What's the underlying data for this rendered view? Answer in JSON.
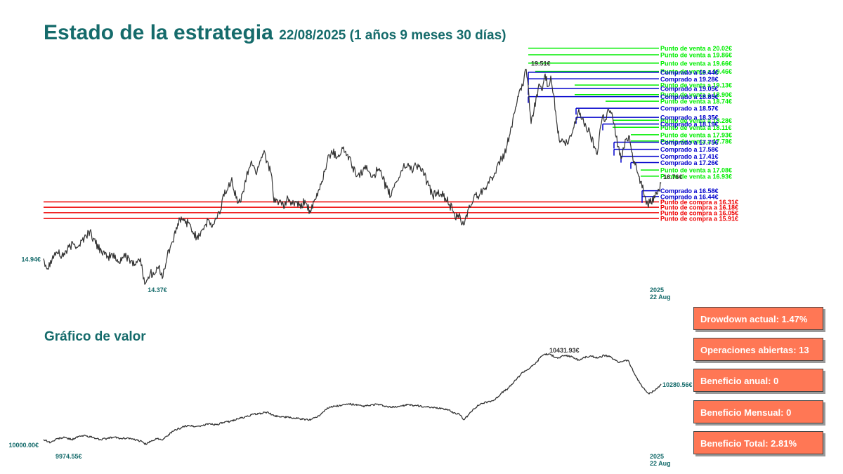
{
  "title": "Estado de la estrategia",
  "subtitle": "22/08/2025 (1 años 9 meses 30 días)",
  "value_title": "Gráfico de valor",
  "colors": {
    "title": "#156b6b",
    "price": "#333333",
    "sell": "#00ee00",
    "buy": "#0000cc",
    "buy_order": "#ee0000",
    "stat_bg": "#ff7755"
  },
  "chart_data": [
    {
      "type": "line",
      "name": "price",
      "ylim": [
        14.2,
        20.2
      ],
      "labels": {
        "start": "14.94€",
        "min": "14.37€",
        "max": "19.51€",
        "end": "16.76€",
        "date_year": "2025",
        "date_day": "22 Aug"
      },
      "anchors": [
        [
          0,
          14.94
        ],
        [
          6,
          14.7
        ],
        [
          10,
          14.9
        ],
        [
          18,
          15.1
        ],
        [
          26,
          15.0
        ],
        [
          34,
          15.15
        ],
        [
          42,
          15.3
        ],
        [
          50,
          15.25
        ],
        [
          58,
          15.45
        ],
        [
          66,
          15.6
        ],
        [
          74,
          15.3
        ],
        [
          82,
          15.15
        ],
        [
          90,
          14.95
        ],
        [
          98,
          15.05
        ],
        [
          106,
          14.85
        ],
        [
          114,
          15.0
        ],
        [
          122,
          14.95
        ],
        [
          130,
          14.8
        ],
        [
          138,
          14.95
        ],
        [
          142,
          14.45
        ],
        [
          146,
          14.37
        ],
        [
          152,
          14.6
        ],
        [
          158,
          14.55
        ],
        [
          164,
          14.75
        ],
        [
          170,
          14.5
        ],
        [
          176,
          15.0
        ],
        [
          182,
          15.3
        ],
        [
          188,
          15.55
        ],
        [
          194,
          15.9
        ],
        [
          200,
          15.85
        ],
        [
          206,
          15.8
        ],
        [
          212,
          15.6
        ],
        [
          218,
          15.45
        ],
        [
          224,
          15.6
        ],
        [
          230,
          15.75
        ],
        [
          236,
          15.85
        ],
        [
          240,
          15.7
        ],
        [
          246,
          15.9
        ],
        [
          252,
          16.1
        ],
        [
          256,
          16.5
        ],
        [
          262,
          16.6
        ],
        [
          268,
          16.9
        ],
        [
          274,
          16.4
        ],
        [
          280,
          16.3
        ],
        [
          286,
          16.7
        ],
        [
          292,
          17.1
        ],
        [
          296,
          17.3
        ],
        [
          302,
          17.0
        ],
        [
          308,
          17.3
        ],
        [
          314,
          17.55
        ],
        [
          318,
          17.3
        ],
        [
          324,
          17.0
        ],
        [
          328,
          16.3
        ],
        [
          336,
          16.35
        ],
        [
          342,
          16.15
        ],
        [
          348,
          16.4
        ],
        [
          354,
          16.25
        ],
        [
          360,
          16.3
        ],
        [
          366,
          16.15
        ],
        [
          372,
          16.35
        ],
        [
          380,
          16.05
        ],
        [
          388,
          16.4
        ],
        [
          396,
          16.8
        ],
        [
          404,
          17.3
        ],
        [
          410,
          17.55
        ],
        [
          418,
          17.4
        ],
        [
          426,
          17.6
        ],
        [
          432,
          17.45
        ],
        [
          438,
          17.25
        ],
        [
          444,
          17.0
        ],
        [
          450,
          16.9
        ],
        [
          456,
          17.15
        ],
        [
          462,
          17.05
        ],
        [
          470,
          16.95
        ],
        [
          476,
          17.1
        ],
        [
          482,
          16.9
        ],
        [
          488,
          16.65
        ],
        [
          494,
          16.45
        ],
        [
          500,
          16.75
        ],
        [
          506,
          16.9
        ],
        [
          512,
          17.15
        ],
        [
          518,
          17.2
        ],
        [
          524,
          17.1
        ],
        [
          530,
          17.2
        ],
        [
          536,
          17.15
        ],
        [
          542,
          16.95
        ],
        [
          548,
          16.7
        ],
        [
          554,
          16.45
        ],
        [
          560,
          16.55
        ],
        [
          566,
          16.5
        ],
        [
          572,
          16.4
        ],
        [
          578,
          16.25
        ],
        [
          582,
          16.1
        ],
        [
          586,
          15.9
        ],
        [
          590,
          16.0
        ],
        [
          594,
          15.85
        ],
        [
          598,
          15.75
        ],
        [
          602,
          16.0
        ],
        [
          608,
          16.2
        ],
        [
          614,
          16.5
        ],
        [
          620,
          16.45
        ],
        [
          626,
          16.65
        ],
        [
          632,
          16.75
        ],
        [
          638,
          16.9
        ],
        [
          644,
          17.0
        ],
        [
          650,
          17.3
        ],
        [
          656,
          17.45
        ],
        [
          660,
          17.7
        ],
        [
          664,
          17.95
        ],
        [
          668,
          18.3
        ],
        [
          672,
          18.6
        ],
        [
          676,
          18.85
        ],
        [
          680,
          19.0
        ],
        [
          684,
          19.3
        ],
        [
          686,
          19.51
        ],
        [
          690,
          19.1
        ],
        [
          694,
          18.2
        ],
        [
          698,
          18.5
        ],
        [
          702,
          18.9
        ],
        [
          706,
          19.15
        ],
        [
          710,
          19.0
        ],
        [
          714,
          19.4
        ],
        [
          718,
          19.1
        ],
        [
          722,
          19.35
        ],
        [
          726,
          18.9
        ],
        [
          730,
          18.3
        ],
        [
          734,
          17.8
        ],
        [
          740,
          17.75
        ],
        [
          746,
          17.7
        ],
        [
          752,
          17.95
        ],
        [
          758,
          18.3
        ],
        [
          762,
          18.55
        ],
        [
          766,
          18.3
        ],
        [
          772,
          18.15
        ],
        [
          778,
          17.95
        ],
        [
          784,
          17.65
        ],
        [
          788,
          17.45
        ],
        [
          792,
          18.05
        ],
        [
          796,
          18.4
        ],
        [
          800,
          18.3
        ],
        [
          804,
          18.55
        ],
        [
          808,
          18.45
        ],
        [
          812,
          18.2
        ],
        [
          818,
          17.65
        ],
        [
          822,
          17.35
        ],
        [
          826,
          17.6
        ],
        [
          830,
          17.85
        ],
        [
          834,
          17.9
        ],
        [
          838,
          17.5
        ],
        [
          842,
          17.2
        ],
        [
          846,
          17.0
        ],
        [
          850,
          16.8
        ],
        [
          856,
          16.45
        ],
        [
          860,
          16.25
        ],
        [
          864,
          16.4
        ],
        [
          868,
          16.3
        ],
        [
          872,
          16.55
        ],
        [
          876,
          16.6
        ],
        [
          879,
          16.76
        ]
      ]
    },
    {
      "type": "line",
      "name": "value",
      "ylim": [
        9950,
        10450
      ],
      "labels": {
        "start": "10000.00€",
        "min": "9974.55€",
        "max": "10431.93€",
        "end": "10280.56€",
        "date_year": "2025",
        "date_day": "22 Aug"
      },
      "anchors": [
        [
          0,
          10000
        ],
        [
          10,
          9985
        ],
        [
          20,
          10005
        ],
        [
          30,
          10010
        ],
        [
          40,
          10000
        ],
        [
          50,
          10015
        ],
        [
          60,
          10020
        ],
        [
          70,
          10010
        ],
        [
          80,
          10000
        ],
        [
          90,
          10005
        ],
        [
          100,
          10012
        ],
        [
          110,
          10005
        ],
        [
          120,
          10008
        ],
        [
          130,
          9998
        ],
        [
          140,
          9990
        ],
        [
          146,
          9974.55
        ],
        [
          154,
          9995
        ],
        [
          162,
          10005
        ],
        [
          170,
          10000
        ],
        [
          178,
          10025
        ],
        [
          186,
          10045
        ],
        [
          196,
          10060
        ],
        [
          206,
          10072
        ],
        [
          216,
          10065
        ],
        [
          226,
          10070
        ],
        [
          236,
          10080
        ],
        [
          246,
          10075
        ],
        [
          256,
          10085
        ],
        [
          266,
          10092
        ],
        [
          276,
          10105
        ],
        [
          286,
          10112
        ],
        [
          296,
          10125
        ],
        [
          306,
          10130
        ],
        [
          318,
          10138
        ],
        [
          328,
          10120
        ],
        [
          340,
          10115
        ],
        [
          352,
          10110
        ],
        [
          364,
          10105
        ],
        [
          378,
          10098
        ],
        [
          392,
          10120
        ],
        [
          404,
          10160
        ],
        [
          414,
          10168
        ],
        [
          424,
          10172
        ],
        [
          434,
          10180
        ],
        [
          444,
          10175
        ],
        [
          454,
          10168
        ],
        [
          464,
          10172
        ],
        [
          474,
          10178
        ],
        [
          484,
          10170
        ],
        [
          494,
          10162
        ],
        [
          506,
          10168
        ],
        [
          518,
          10175
        ],
        [
          530,
          10172
        ],
        [
          542,
          10165
        ],
        [
          554,
          10160
        ],
        [
          566,
          10158
        ],
        [
          576,
          10150
        ],
        [
          584,
          10135
        ],
        [
          592,
          10128
        ],
        [
          598,
          10100
        ],
        [
          604,
          10120
        ],
        [
          612,
          10155
        ],
        [
          622,
          10180
        ],
        [
          632,
          10190
        ],
        [
          642,
          10200
        ],
        [
          652,
          10235
        ],
        [
          662,
          10260
        ],
        [
          672,
          10300
        ],
        [
          682,
          10340
        ],
        [
          692,
          10360
        ],
        [
          702,
          10390
        ],
        [
          708,
          10420
        ],
        [
          714,
          10431.93
        ],
        [
          722,
          10428
        ],
        [
          732,
          10410
        ],
        [
          742,
          10425
        ],
        [
          752,
          10418
        ],
        [
          762,
          10400
        ],
        [
          770,
          10415
        ],
        [
          780,
          10420
        ],
        [
          790,
          10412
        ],
        [
          798,
          10425
        ],
        [
          806,
          10418
        ],
        [
          812,
          10405
        ],
        [
          818,
          10390
        ],
        [
          826,
          10398
        ],
        [
          832,
          10400
        ],
        [
          840,
          10340
        ],
        [
          848,
          10290
        ],
        [
          856,
          10250
        ],
        [
          862,
          10230
        ],
        [
          868,
          10245
        ],
        [
          874,
          10260
        ],
        [
          879,
          10280.56
        ]
      ]
    }
  ],
  "levels": {
    "sell": [
      {
        "value": 20.02,
        "label": "Punto de venta a 20.02€",
        "start": 690
      },
      {
        "value": 19.86,
        "label": "Punto de venta a 19.86€",
        "start": 690
      },
      {
        "value": 19.66,
        "label": "Punto de venta a 19.66€",
        "start": 690
      },
      {
        "value": 19.46,
        "label": "Punto de venta a 19.46€",
        "start": 700
      },
      {
        "value": 19.13,
        "label": "Punto de venta a 19.13€",
        "start": 756
      },
      {
        "value": 18.9,
        "label": "Punto de venta a 18.90€",
        "start": 756
      },
      {
        "value": 18.74,
        "label": "Punto de venta a 18.74€",
        "start": 800
      },
      {
        "value": 18.28,
        "label": "Punto de venta a 18.28€",
        "start": 810
      },
      {
        "value": 18.11,
        "label": "Punto de venta a 18.11€",
        "start": 810
      },
      {
        "value": 17.93,
        "label": "Punto de venta a 17.93€",
        "start": 836
      },
      {
        "value": 17.78,
        "label": "Punto de venta a 17.78€",
        "start": 836
      },
      {
        "value": 17.08,
        "label": "Punto de venta a 17.08€",
        "start": 850
      },
      {
        "value": 16.93,
        "label": "Punto de venta a 16.93€",
        "start": 850
      }
    ],
    "bought": [
      {
        "value": 19.44,
        "label": "Comprado a 19.44€",
        "start": 690
      },
      {
        "value": 19.28,
        "label": "Comprado a 19.28€",
        "start": 690
      },
      {
        "value": 19.05,
        "label": "Comprado a 19.05€",
        "start": 690
      },
      {
        "value": 18.85,
        "label": "Comprado a 18.85€",
        "start": 690
      },
      {
        "value": 18.57,
        "label": "Comprado a 18.57€",
        "start": 758
      },
      {
        "value": 18.35,
        "label": "Comprado a 18.35€",
        "start": 758
      },
      {
        "value": 18.19,
        "label": "Comprado a 18.19€",
        "start": 796
      },
      {
        "value": 17.75,
        "label": "Comprado a 17.75€",
        "start": 812
      },
      {
        "value": 17.58,
        "label": "Comprado a 17.58€",
        "start": 812
      },
      {
        "value": 17.41,
        "label": "Comprado a 17.41€",
        "start": 822
      },
      {
        "value": 17.26,
        "label": "Comprado a 17.26€",
        "start": 836
      },
      {
        "value": 16.58,
        "label": "Comprado a 16.58€",
        "start": 852
      },
      {
        "value": 16.44,
        "label": "Comprado a 16.44€",
        "start": 852
      }
    ],
    "buy_orders": [
      {
        "value": 16.31,
        "label": "Punto de compra a 16.31€"
      },
      {
        "value": 16.18,
        "label": "Punto de compra a 16.18€"
      },
      {
        "value": 16.05,
        "label": "Punto de compra a 16.05€"
      },
      {
        "value": 15.91,
        "label": "Punto de compra a 15.91€"
      }
    ]
  },
  "stats": [
    {
      "label": "Drowdown actual: 1.47%"
    },
    {
      "label": "Operaciones abiertas: 13"
    },
    {
      "label": "Beneficio anual: 0"
    },
    {
      "label": "Beneficio Mensual: 0"
    },
    {
      "label": "Beneficio Total: 2.81%"
    }
  ]
}
